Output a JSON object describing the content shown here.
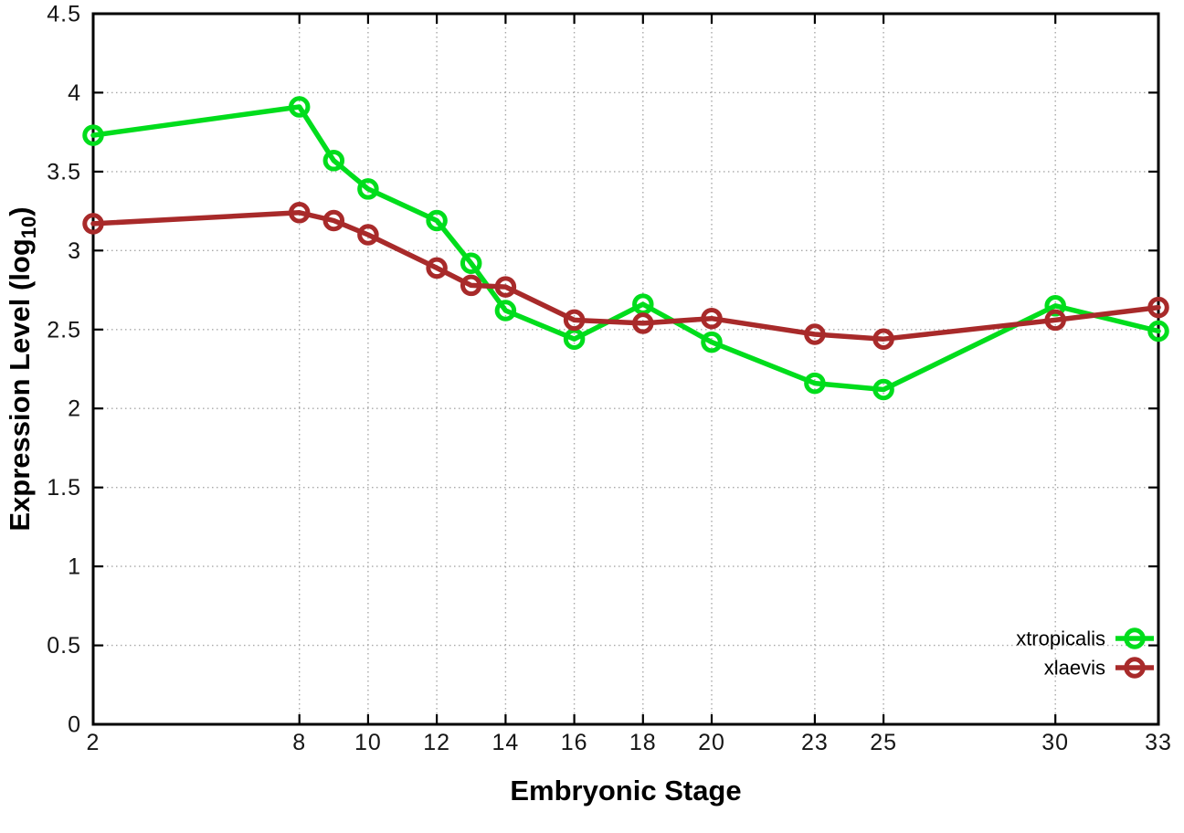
{
  "chart_data": {
    "type": "line",
    "title": "",
    "xlabel": "Embryonic Stage",
    "ylabel": "Expression Level (log10)",
    "ylabel_parts": {
      "pre": "Expression Level (log",
      "sub": "10",
      "post": ")"
    },
    "xlim": [
      2,
      33
    ],
    "ylim": [
      0,
      4.5
    ],
    "x_ticks": [
      2,
      8,
      10,
      12,
      14,
      16,
      18,
      20,
      23,
      25,
      30,
      33
    ],
    "y_ticks": [
      0,
      0.5,
      1,
      1.5,
      2,
      2.5,
      3,
      3.5,
      4,
      4.5
    ],
    "grid": true,
    "legend_position": "bottom-right-inside",
    "axis_color": "#000000",
    "grid_color": "#a8a8a8",
    "x": [
      2,
      8,
      9,
      10,
      12,
      13,
      14,
      16,
      18,
      20,
      23,
      25,
      30,
      33
    ],
    "series": [
      {
        "name": "xtropicalis",
        "color": "#00dd1c",
        "values": [
          3.73,
          3.91,
          3.57,
          3.39,
          3.19,
          2.92,
          2.62,
          2.44,
          2.66,
          2.42,
          2.16,
          2.12,
          2.65,
          2.49
        ]
      },
      {
        "name": "xlaevis",
        "color": "#a82a2a",
        "values": [
          3.17,
          3.24,
          3.19,
          3.1,
          2.89,
          2.78,
          2.77,
          2.56,
          2.54,
          2.57,
          2.47,
          2.44,
          2.56,
          2.64
        ]
      }
    ]
  }
}
